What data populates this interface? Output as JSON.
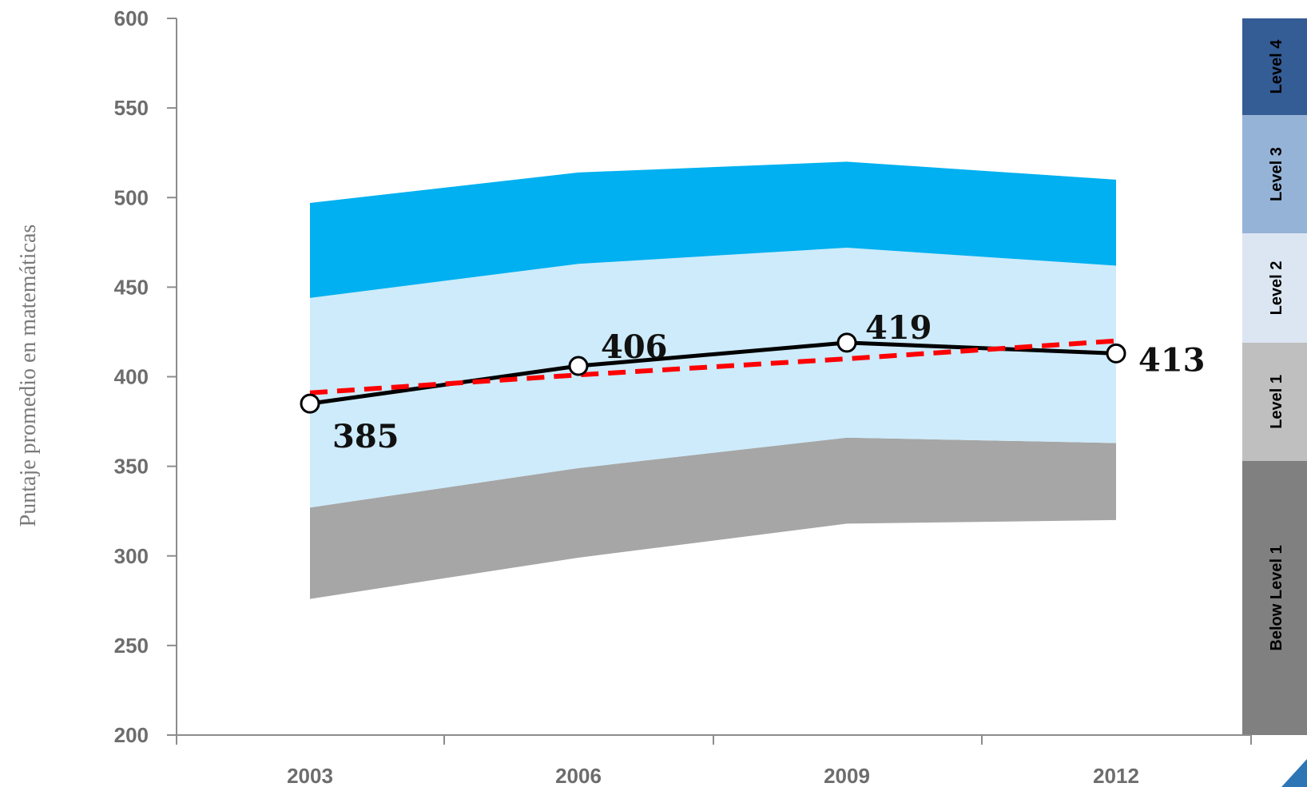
{
  "chart_data": {
    "type": "area",
    "title": "",
    "xlabel": "",
    "ylabel": "Puntaje promedio en matemáticas",
    "ylim": [
      200,
      600
    ],
    "yticks": [
      200,
      250,
      300,
      350,
      400,
      450,
      500,
      550,
      600
    ],
    "x": [
      "2003",
      "2006",
      "2009",
      "2012"
    ],
    "bands": [
      {
        "lower": [
          276,
          299,
          318,
          320
        ],
        "upper": [
          327,
          349,
          366,
          363
        ],
        "color": "#a6a6a6"
      },
      {
        "lower": [
          327,
          349,
          366,
          363
        ],
        "upper": [
          444,
          463,
          472,
          462
        ],
        "color": "#cdebfb"
      },
      {
        "lower": [
          444,
          463,
          472,
          462
        ],
        "upper": [
          497,
          514,
          520,
          510
        ],
        "color": "#00b0f0"
      }
    ],
    "series": [
      {
        "values": [
          385,
          406,
          419,
          413
        ],
        "labels": [
          "385",
          "406",
          "419",
          "413"
        ],
        "color": "#000000",
        "style": "solid",
        "markers": "circle"
      },
      {
        "values": [
          391,
          401,
          410,
          420
        ],
        "color": "#ff0000",
        "style": "dashed"
      }
    ],
    "levels": [
      {
        "label": "Level 4",
        "from": 546,
        "to": 600,
        "color": "#345c95"
      },
      {
        "label": "Level 3",
        "from": 480,
        "to": 546,
        "color": "#95b3d7"
      },
      {
        "label": "Level 2",
        "from": 419,
        "to": 480,
        "color": "#dce6f2"
      },
      {
        "label": "Level 1",
        "from": 353,
        "to": 419,
        "color": "#bfbfbf"
      },
      {
        "label": "Below Level 1",
        "from": 200,
        "to": 353,
        "color": "#808080"
      }
    ],
    "grid": false,
    "legend": "none"
  }
}
